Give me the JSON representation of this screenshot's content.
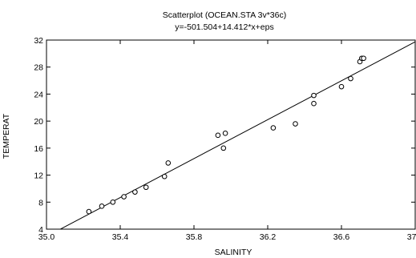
{
  "chart_data": {
    "type": "scatter",
    "title": "Scatterplot (OCEAN.STA 3v*36c)",
    "subtitle": "y=-501.504+14.412*x+eps",
    "xlabel": "SALINITY",
    "ylabel": "TEMPERAT",
    "xlim": [
      35.0,
      37.0
    ],
    "ylim": [
      4,
      32
    ],
    "x_ticks": [
      "35.0",
      "35.4",
      "35.8",
      "36.2",
      "36.6",
      "37.0"
    ],
    "y_ticks": [
      "4",
      "8",
      "12",
      "16",
      "20",
      "24",
      "28",
      "32"
    ],
    "grid": false,
    "regression": {
      "intercept": -501.504,
      "slope": 14.412
    },
    "points": [
      {
        "x": 35.23,
        "y": 6.6
      },
      {
        "x": 35.3,
        "y": 7.4
      },
      {
        "x": 35.36,
        "y": 8.0
      },
      {
        "x": 35.42,
        "y": 8.8
      },
      {
        "x": 35.48,
        "y": 9.5
      },
      {
        "x": 35.54,
        "y": 10.2
      },
      {
        "x": 35.64,
        "y": 11.8
      },
      {
        "x": 35.66,
        "y": 13.8
      },
      {
        "x": 35.93,
        "y": 17.9
      },
      {
        "x": 35.96,
        "y": 16.0
      },
      {
        "x": 35.97,
        "y": 18.2
      },
      {
        "x": 36.23,
        "y": 19.0
      },
      {
        "x": 36.35,
        "y": 19.6
      },
      {
        "x": 36.45,
        "y": 22.6
      },
      {
        "x": 36.45,
        "y": 23.8
      },
      {
        "x": 36.6,
        "y": 25.1
      },
      {
        "x": 36.65,
        "y": 26.3
      },
      {
        "x": 36.7,
        "y": 28.8
      },
      {
        "x": 36.71,
        "y": 29.3
      },
      {
        "x": 36.72,
        "y": 29.3
      }
    ]
  }
}
